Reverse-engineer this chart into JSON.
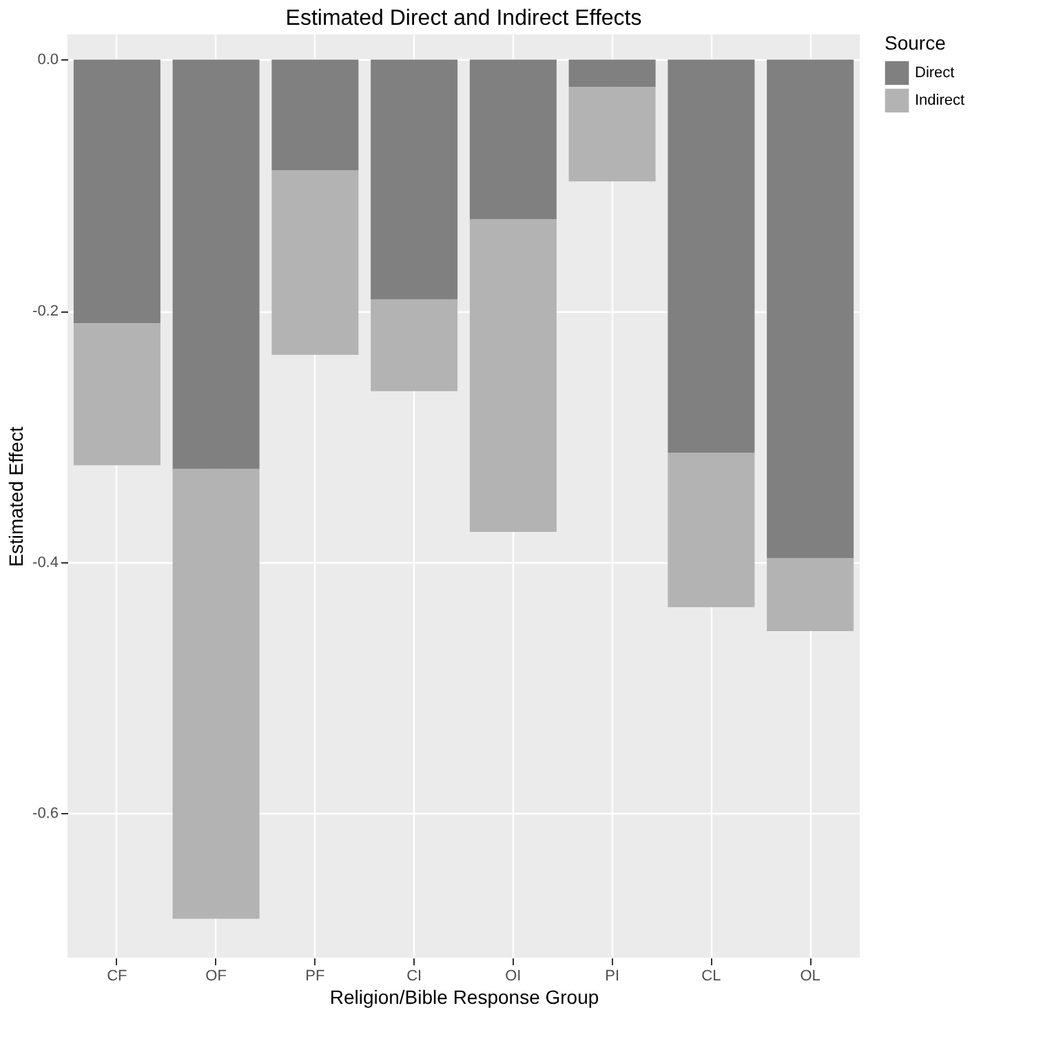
{
  "chart_data": {
    "type": "bar",
    "title": "Estimated Direct and Indirect Effects",
    "xlabel": "Religion/Bible Response Group",
    "ylabel": "Estimated Effect",
    "legend_title": "Source",
    "categories": [
      "CF",
      "OF",
      "PF",
      "CI",
      "OI",
      "PI",
      "CL",
      "OL"
    ],
    "stacked": true,
    "series": [
      {
        "name": "Direct",
        "color": "#808080",
        "values": [
          -0.21,
          -0.326,
          -0.088,
          -0.191,
          -0.127,
          -0.022,
          -0.313,
          -0.397
        ]
      },
      {
        "name": "Indirect",
        "color": "#b3b3b3",
        "values": [
          -0.113,
          -0.358,
          -0.147,
          -0.073,
          -0.249,
          -0.075,
          -0.123,
          -0.058
        ]
      }
    ],
    "ylim": [
      -0.715,
      0.02
    ],
    "yticks": [
      {
        "value": 0,
        "label": "0.0"
      },
      {
        "value": -0.2,
        "label": "-0.2"
      },
      {
        "value": -0.4,
        "label": "-0.4"
      },
      {
        "value": -0.6,
        "label": "-0.6"
      }
    ],
    "grid": true,
    "legend": "right"
  }
}
